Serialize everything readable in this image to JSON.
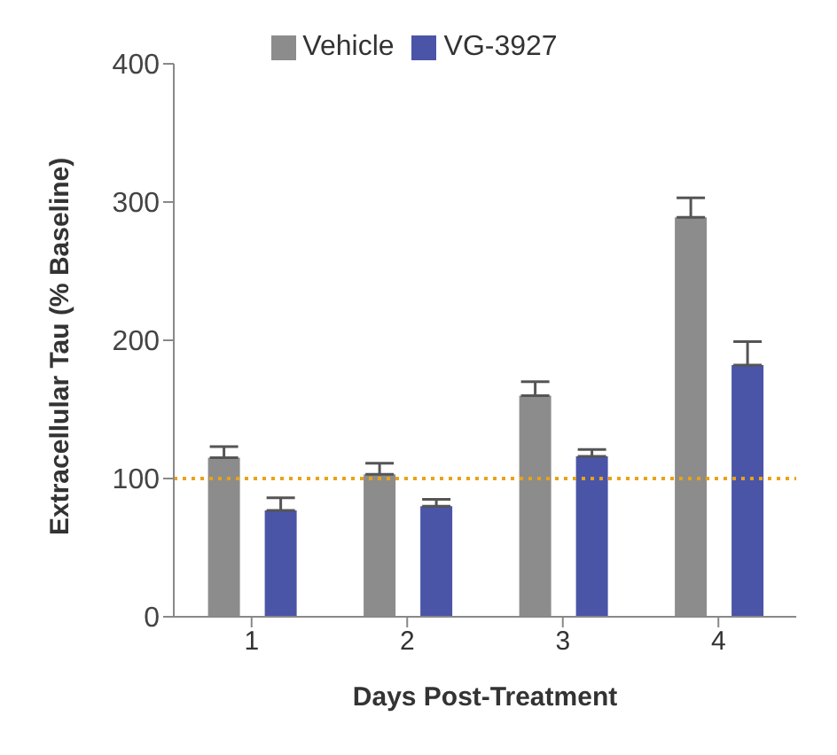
{
  "chart_data": {
    "type": "bar",
    "categories": [
      "1",
      "2",
      "3",
      "4"
    ],
    "series": [
      {
        "name": "Vehicle",
        "color": "#8c8c8c",
        "values": [
          115,
          103,
          160,
          289
        ],
        "errors": [
          [
            115,
            123
          ],
          [
            103,
            111
          ],
          [
            160,
            170
          ],
          [
            289,
            303
          ]
        ]
      },
      {
        "name": "VG-3927",
        "color": "#4a55a8",
        "values": [
          77,
          80,
          116,
          182
        ],
        "errors": [
          [
            77,
            86
          ],
          [
            80,
            85
          ],
          [
            116,
            121
          ],
          [
            182,
            199
          ]
        ]
      }
    ],
    "xlabel": "Days Post-Treatment",
    "ylabel": "Extracellular Tau (% Baseline)",
    "ylim": [
      0,
      400
    ],
    "yticks": [
      0,
      100,
      200,
      300,
      400
    ],
    "grid": false,
    "legend": "top",
    "ref_lines": [
      {
        "axis": "y",
        "value": 100,
        "color": "#e8a317",
        "line_style": "dotted"
      }
    ]
  }
}
